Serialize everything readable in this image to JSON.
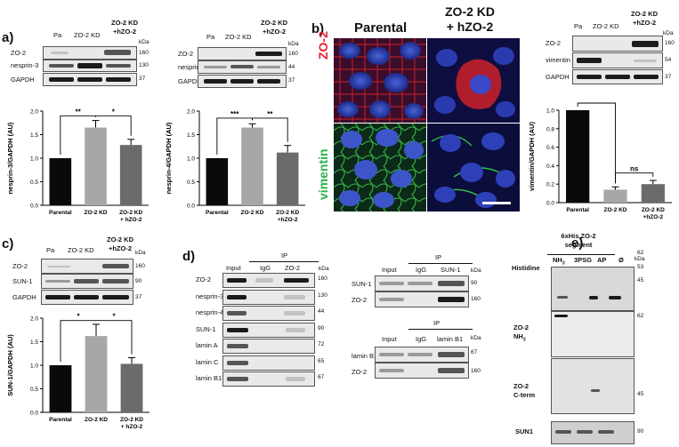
{
  "panel_labels": {
    "a": "a)",
    "b": "b)",
    "c": "c)",
    "d": "d)",
    "e": "e)"
  },
  "common": {
    "kda": "kDa",
    "pa": "Pa",
    "zo2kd": "ZO-2 KD",
    "zo2kd_h1": "ZO-2 KD",
    "zo2kd_h2": "+hZO-2"
  },
  "a_left_blot": {
    "rows": [
      {
        "label": "ZO-2",
        "mw": "160"
      },
      {
        "label": "nesprin-3",
        "mw": "130"
      },
      {
        "label": "GAPDH",
        "mw": "37"
      }
    ]
  },
  "a_right_blot": {
    "rows": [
      {
        "label": "ZO-2",
        "mw": "160"
      },
      {
        "label": "nesprin-4",
        "mw": "44"
      },
      {
        "label": "GAPDH",
        "mw": "37"
      }
    ]
  },
  "b_micro": {
    "col1": "Parental",
    "col2a": "ZO-2 KD",
    "col2b": "+ hZO-2",
    "row1": "ZO-2",
    "row2": "vimentin",
    "row1_color": "#e8202a",
    "row2_color": "#27b34a"
  },
  "b_blot": {
    "rows": [
      {
        "label": "ZO-2",
        "mw": "160"
      },
      {
        "label": "vimentin",
        "mw": "54"
      },
      {
        "label": "GAPDH",
        "mw": "37"
      }
    ]
  },
  "c_blot": {
    "rows": [
      {
        "label": "ZO-2",
        "mw": "160"
      },
      {
        "label": "SUN-1",
        "mw": "90"
      },
      {
        "label": "GAPDH",
        "mw": "37"
      }
    ]
  },
  "d_blot": {
    "input": "Input",
    "ip": "IP",
    "igg": "IgG",
    "ab": "ZO-2",
    "rows": [
      {
        "label": "ZO-2",
        "mw": "160"
      },
      {
        "label": "nesprin-3",
        "mw": "130"
      },
      {
        "label": "nesprin-4",
        "mw": "44"
      },
      {
        "label": "SUN-1",
        "mw": "90"
      },
      {
        "label": "lamin A",
        "mw": "72"
      },
      {
        "label": "lamin C",
        "mw": "65"
      },
      {
        "label": "lamin B1",
        "mw": "67"
      }
    ]
  },
  "d_sun1": {
    "input": "Input",
    "ip": "IP",
    "igg": "IgG",
    "ab": "SUN-1",
    "rows": [
      {
        "label": "SUN-1",
        "mw": "90"
      },
      {
        "label": "ZO-2",
        "mw": "160"
      }
    ]
  },
  "d_lamin": {
    "input": "Input",
    "ip": "IP",
    "igg": "IgG",
    "ab": "lamin B1",
    "rows": [
      {
        "label": "lamin B1",
        "mw": "67"
      },
      {
        "label": "ZO-2",
        "mw": "160"
      }
    ]
  },
  "e": {
    "header1": "6xHis ZO-2",
    "header2": "segment",
    "lanes": [
      "NH",
      "3PSG",
      "AP",
      "Ø"
    ],
    "nh_sub": "3",
    "histidine": "Histidine",
    "mw_hist": [
      "62",
      "53",
      "45"
    ],
    "zo2nh_l1": "ZO-2",
    "zo2nh_l2": "NH",
    "zo2nh_sub": "3",
    "mw_nh": "62",
    "zo2c_l1": "ZO-2",
    "zo2c_l2": "C-term",
    "mw_c": "45",
    "sun1": "SUN1",
    "mw_sun": "90"
  },
  "chart_data": [
    {
      "type": "bar",
      "id": "nesprin3",
      "ylabel": "nesprin-3/GAPDH (AU)",
      "categories": [
        "Parental",
        "ZO-2 KD",
        "ZO-2 KD\n+ hZO-2"
      ],
      "cat_lines": [
        [
          "Parental"
        ],
        [
          "ZO-2 KD"
        ],
        [
          "ZO-2 KD",
          "+ hZO-2"
        ]
      ],
      "values": [
        1.0,
        1.65,
        1.28
      ],
      "errors": [
        0,
        0.15,
        0.12
      ],
      "colors": [
        "#0a0a0a",
        "#a7a7a7",
        "#6b6b6b"
      ],
      "ylim": [
        0,
        2.0
      ],
      "yticks": [
        "0.0",
        "0.5",
        "1.0",
        "1.5",
        "2.0"
      ],
      "sig": [
        {
          "a": 0,
          "b": 1,
          "label": "**",
          "level": 1.9
        },
        {
          "a": 1,
          "b": 2,
          "label": "*",
          "level": 1.9
        }
      ]
    },
    {
      "type": "bar",
      "id": "nesprin4",
      "ylabel": "nesprin-4/GAPDH (AU)",
      "categories": [
        "Parental",
        "ZO-2 KD",
        "ZO-2 KD\n+hZO-2"
      ],
      "cat_lines": [
        [
          "Parental"
        ],
        [
          "ZO-2 KD"
        ],
        [
          "ZO-2 KD",
          "+hZO-2"
        ]
      ],
      "values": [
        1.0,
        1.65,
        1.12
      ],
      "errors": [
        0,
        0.08,
        0.15
      ],
      "colors": [
        "#0a0a0a",
        "#a7a7a7",
        "#6b6b6b"
      ],
      "ylim": [
        0,
        2.0
      ],
      "yticks": [
        "0.0",
        "0.5",
        "1.0",
        "1.5",
        "2.0"
      ],
      "sig": [
        {
          "a": 0,
          "b": 1,
          "label": "***",
          "level": 1.85
        },
        {
          "a": 1,
          "b": 2,
          "label": "**",
          "level": 1.85
        }
      ]
    },
    {
      "type": "bar",
      "id": "vimentin",
      "ylabel": "vimentin/GAPDH (AU)",
      "categories": [
        "Parental",
        "ZO-2 KD",
        "ZO-2 KD\n+hZO-2"
      ],
      "cat_lines": [
        [
          "Parental"
        ],
        [
          "ZO-2 KD"
        ],
        [
          "ZO-2 KD",
          "+hZO-2"
        ]
      ],
      "values": [
        1.0,
        0.14,
        0.2
      ],
      "errors": [
        0,
        0.03,
        0.04
      ],
      "colors": [
        "#0a0a0a",
        "#a7a7a7",
        "#6b6b6b"
      ],
      "ylim": [
        0,
        1.0
      ],
      "yticks": [
        "0.0",
        "0.2",
        "0.4",
        "0.6",
        "0.8",
        "1.0"
      ],
      "sig": [
        {
          "a": 0,
          "b": 1,
          "label": "****",
          "level": 1.08
        },
        {
          "a": 1,
          "b": 2,
          "label": "ns",
          "level": 0.32
        }
      ]
    },
    {
      "type": "bar",
      "id": "sun1",
      "ylabel": "SUN-1/GAPDH (AU)",
      "categories": [
        "Parental",
        "ZO-2 KD",
        "ZO-2 KD\n+ hZO-2"
      ],
      "cat_lines": [
        [
          "Parental"
        ],
        [
          "ZO-2 KD"
        ],
        [
          "ZO-2 KD",
          "+ hZO-2"
        ]
      ],
      "values": [
        1.0,
        1.62,
        1.03
      ],
      "errors": [
        0,
        0.25,
        0.13
      ],
      "colors": [
        "#0a0a0a",
        "#a7a7a7",
        "#6b6b6b"
      ],
      "ylim": [
        0,
        2.0
      ],
      "yticks": [
        "0.0",
        "0.5",
        "1.0",
        "1.5",
        "2.0"
      ],
      "sig": [
        {
          "a": 0,
          "b": 1,
          "label": "*",
          "level": 1.95
        },
        {
          "a": 1,
          "b": 2,
          "label": "*",
          "level": 1.95
        }
      ]
    }
  ]
}
